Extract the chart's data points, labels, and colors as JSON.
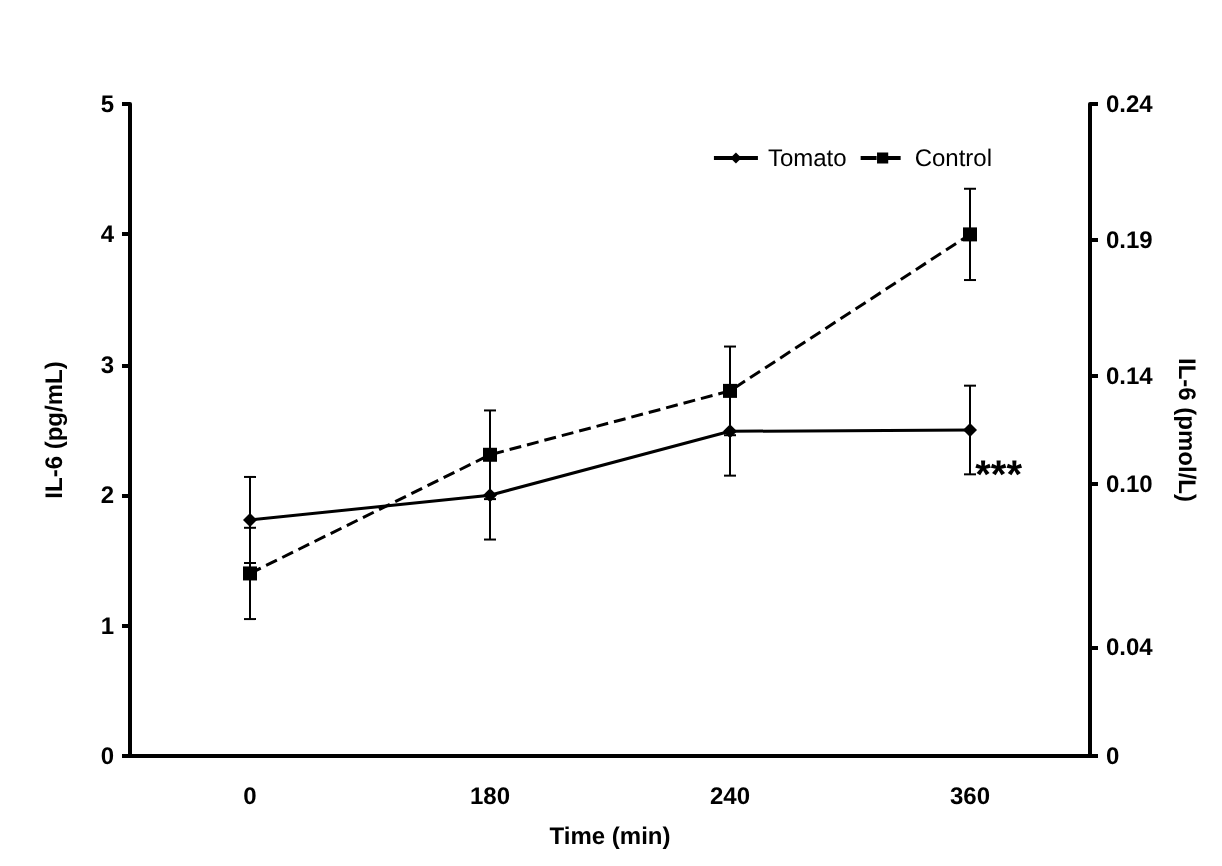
{
  "chart_data": {
    "type": "line",
    "xlabel": "Time (min)",
    "ylabel": "IL-6 (pg/mL)",
    "y2label": "IL-6 (pmol/L)",
    "categories": [
      "0",
      "180",
      "240",
      "360"
    ],
    "series": [
      {
        "name": "Tomato",
        "color": "#000000",
        "values": [
          1.81,
          2.0,
          2.49,
          2.5
        ],
        "errors": [
          0.33,
          0.34,
          0.34,
          0.34
        ],
        "marker": "diamond",
        "line_style": "solid"
      },
      {
        "name": "Control",
        "color": "#000000",
        "values": [
          1.4,
          2.31,
          2.8,
          4.0
        ],
        "errors": [
          0.35,
          0.34,
          0.34,
          0.35
        ],
        "marker": "square",
        "line_style": "dashed"
      }
    ],
    "ylim": [
      0,
      5
    ],
    "yticks": [
      0,
      1,
      2,
      3,
      4,
      5
    ],
    "y2lim": [
      0,
      0.24
    ],
    "y2ticks": [
      0,
      0.04,
      {
        "value": 0.1,
        "label": "0.10"
      },
      0.14,
      0.19,
      0.24
    ],
    "annotations": [
      "***"
    ],
    "legend": "top right",
    "grid": false
  }
}
